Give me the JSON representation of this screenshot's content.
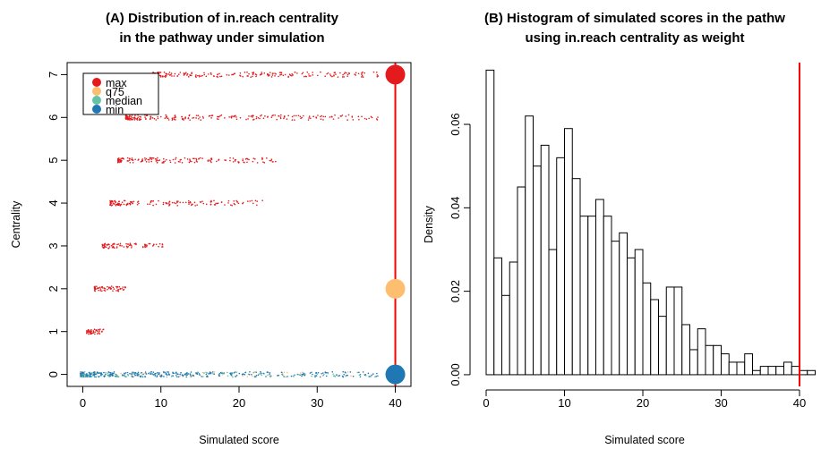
{
  "chart_data": [
    {
      "type": "scatter",
      "title_line1": "(A) Distribution of in.reach centrality",
      "title_line2": "in the pathway under simulation",
      "xlabel": "Simulated score",
      "ylabel": "Centrality",
      "xlim": [
        -2,
        42
      ],
      "ylim": [
        -0.28,
        7.28
      ],
      "x_ticks": [
        0,
        10,
        20,
        30,
        40
      ],
      "y_ticks": [
        0,
        1,
        2,
        3,
        4,
        5,
        6,
        7
      ],
      "grid": false,
      "legend_position": "top-left",
      "legend": [
        {
          "label": "max",
          "color": "#E41A1C"
        },
        {
          "label": "q75",
          "color": "#FDBF6F"
        },
        {
          "label": "median",
          "color": "#66C2A5"
        },
        {
          "label": "min",
          "color": "#1F78B4"
        }
      ],
      "points_description_ranges": [
        {
          "centrality": 7,
          "x_min": 9,
          "x_max": 38,
          "group": "max"
        },
        {
          "centrality": 6,
          "x_min": 5.5,
          "x_max": 38,
          "group": "max"
        },
        {
          "centrality": 5,
          "x_min": 4.5,
          "x_max": 25,
          "group": "max"
        },
        {
          "centrality": 4,
          "x_min": 3.5,
          "x_max": 23,
          "group": "max"
        },
        {
          "centrality": 3,
          "x_min": 2.5,
          "x_max": 10.5,
          "group": "max"
        },
        {
          "centrality": 2,
          "x_min": 1.5,
          "x_max": 5.5,
          "group": "max"
        },
        {
          "centrality": 1,
          "x_min": 0.5,
          "x_max": 2.7,
          "group": "max"
        },
        {
          "centrality": 0,
          "x_min": -0.3,
          "x_max": 38,
          "group": "min"
        }
      ],
      "big_markers": [
        {
          "x": 40,
          "y": 7,
          "group": "max",
          "color": "#E41A1C"
        },
        {
          "x": 40,
          "y": 2,
          "group": "q75",
          "color": "#FDBF6F"
        },
        {
          "x": 40,
          "y": 0,
          "group": "min",
          "color": "#1F78B4"
        }
      ],
      "vline": {
        "x": 40,
        "color": "#FF0000"
      }
    },
    {
      "type": "bar",
      "subtype": "histogram",
      "title_line1": "(B) Histogram of simulated scores in the pathw",
      "title_line2": "using in.reach centrality as weight",
      "xlabel": "Simulated score",
      "ylabel": "Density",
      "xlim": [
        -1.6,
        41.6
      ],
      "ylim": [
        -0.0028,
        0.0748
      ],
      "x_ticks": [
        0,
        10,
        20,
        30,
        40
      ],
      "y_ticks": [
        "0.00",
        "0.02",
        "0.04",
        "0.06"
      ],
      "bin_width": 1,
      "bin_start": 0,
      "densities": [
        0.073,
        0.028,
        0.019,
        0.027,
        0.045,
        0.062,
        0.05,
        0.055,
        0.03,
        0.052,
        0.059,
        0.047,
        0.038,
        0.038,
        0.042,
        0.038,
        0.032,
        0.034,
        0.028,
        0.03,
        0.022,
        0.018,
        0.014,
        0.021,
        0.021,
        0.012,
        0.006,
        0.011,
        0.007,
        0.007,
        0.005,
        0.003,
        0.003,
        0.005,
        0.001,
        0.002,
        0.002,
        0.002,
        0.003,
        0.002,
        0.001,
        0.001
      ],
      "vline": {
        "x": 40,
        "color": "#FF0000"
      }
    }
  ]
}
